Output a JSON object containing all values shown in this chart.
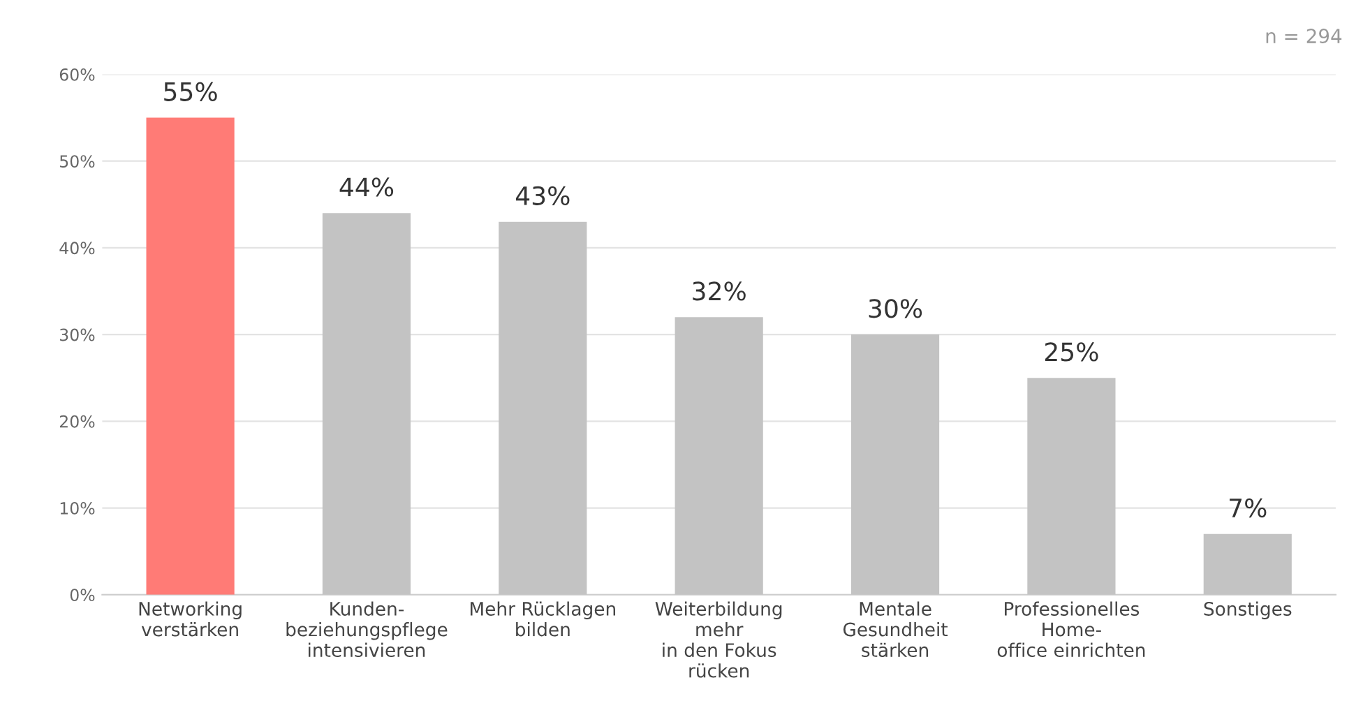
{
  "chart_data": {
    "type": "bar",
    "categories": [
      "Networking\nverstärken",
      "Kunden-\nbeziehungspflege\nintensivieren",
      "Mehr Rücklagen\nbilden",
      "Weiterbildung\nmehr\nin den Fokus\nrücken",
      "Mentale\nGesundheit\nstärken",
      "Professionelles\nHome-\noffice einrichten",
      "Sonstiges"
    ],
    "values": [
      55,
      44,
      43,
      32,
      30,
      25,
      7
    ],
    "colors": [
      "#ff7b76",
      "#c3c3c3",
      "#c3c3c3",
      "#c3c3c3",
      "#c3c3c3",
      "#c3c3c3",
      "#c3c3c3"
    ],
    "value_labels": [
      "55%",
      "44%",
      "43%",
      "32%",
      "30%",
      "25%",
      "7%"
    ],
    "ylim": [
      0,
      60
    ],
    "yticks": [
      {
        "value": 0,
        "label": "0%"
      },
      {
        "value": 10,
        "label": "10%"
      },
      {
        "value": 20,
        "label": "20%"
      },
      {
        "value": 30,
        "label": "30%"
      },
      {
        "value": 40,
        "label": "40%"
      },
      {
        "value": 50,
        "label": "50%"
      },
      {
        "value": 60,
        "label": "60%"
      }
    ],
    "grid": "y",
    "legend": false,
    "annotations": [
      "n = 294"
    ]
  }
}
